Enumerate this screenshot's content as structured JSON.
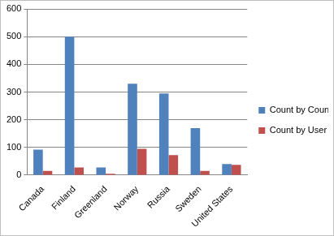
{
  "chart_data": {
    "type": "bar",
    "categories": [
      "Canada",
      "Finland",
      "Greenland",
      "Norway",
      "Russia",
      "Sweden",
      "United States"
    ],
    "series": [
      {
        "name": "Count by Country",
        "color": "#4f81bd",
        "values": [
          92,
          500,
          28,
          330,
          295,
          170,
          40
        ]
      },
      {
        "name": "Count by User - No Bots",
        "color": "#c0504d",
        "values": [
          15,
          28,
          5,
          95,
          72,
          15,
          37
        ]
      }
    ],
    "ylim": [
      0,
      600
    ],
    "yticks": [
      0,
      100,
      200,
      300,
      400,
      500,
      600
    ],
    "grid": true,
    "legend": "right"
  }
}
